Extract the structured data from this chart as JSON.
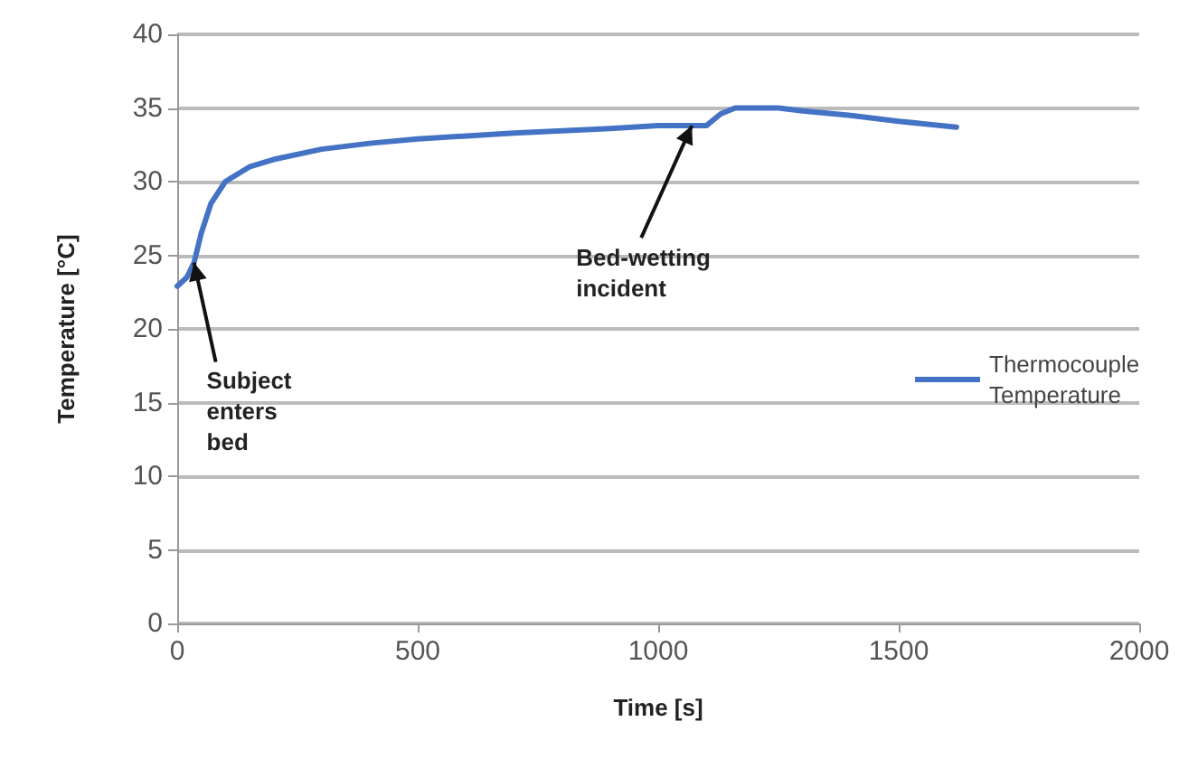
{
  "chart_data": {
    "type": "line",
    "xlabel": "Time [s]",
    "ylabel": "Temperature [°C]",
    "x": [
      0,
      20,
      35,
      50,
      70,
      100,
      150,
      200,
      300,
      400,
      500,
      700,
      900,
      1000,
      1100,
      1130,
      1160,
      1250,
      1300,
      1400,
      1500,
      1620
    ],
    "series": [
      {
        "name": "Thermocouple Temperature",
        "color": "#4472c4",
        "values": [
          22.9,
          23.5,
          24.5,
          26.5,
          28.5,
          30,
          31,
          31.5,
          32.2,
          32.6,
          32.9,
          33.3,
          33.6,
          33.8,
          33.8,
          34.6,
          35,
          35,
          34.8,
          34.5,
          34.1,
          33.7
        ]
      }
    ],
    "xlim": [
      0,
      2000
    ],
    "xticks": [
      0,
      500,
      1000,
      1500,
      2000
    ],
    "ylim": [
      0,
      40
    ],
    "yticks": [
      0,
      5,
      10,
      15,
      20,
      25,
      30,
      35,
      40
    ],
    "annotations": [
      {
        "text": "Subject enters bed",
        "x": 35,
        "y": 24.5
      },
      {
        "text": "Bed-wetting incident",
        "x": 1070,
        "y": 33.8
      }
    ],
    "grid": "y",
    "legend": "right",
    "marker": "none",
    "line_style": "solid"
  }
}
